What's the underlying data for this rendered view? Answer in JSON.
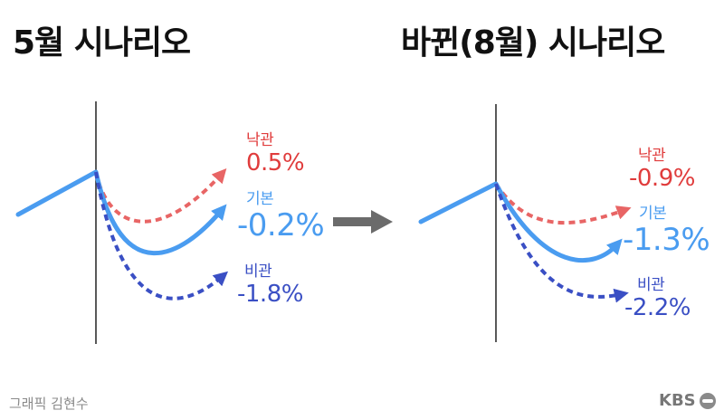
{
  "titles": {
    "left": "5월 시나리오",
    "right": "바뀐(8월) 시나리오"
  },
  "colors": {
    "optimistic": "#e86565",
    "baseline": "#4a9cf0",
    "pessimistic": "#3a4fc4",
    "arrow": "#6b6b6b",
    "axis": "#222222"
  },
  "may": {
    "optimistic": {
      "name": "낙관",
      "value": "0.5%"
    },
    "baseline": {
      "name": "기본",
      "value": "-0.2%"
    },
    "pessimistic": {
      "name": "비관",
      "value": "-1.8%"
    }
  },
  "august": {
    "optimistic": {
      "name": "낙관",
      "value": "-0.9%"
    },
    "baseline": {
      "name": "기본",
      "value": "-1.3%"
    },
    "pessimistic": {
      "name": "비관",
      "value": "-2.2%"
    }
  },
  "footer": {
    "credit": "그래픽 김현수",
    "logo": "KBS"
  }
}
